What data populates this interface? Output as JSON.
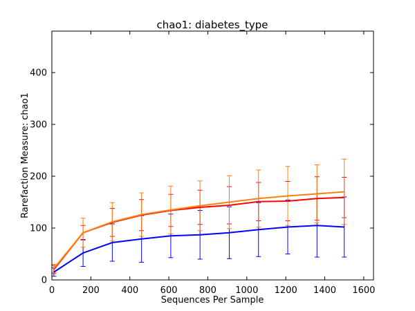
{
  "chart_data": {
    "type": "line",
    "title": "chao1: diabetes_type",
    "xlabel": "Sequences Per Sample",
    "ylabel": "Rarefaction Measure: chao1",
    "xlim": [
      0,
      1650
    ],
    "ylim": [
      0,
      480
    ],
    "xticks": [
      0,
      200,
      400,
      600,
      800,
      1000,
      1200,
      1400,
      1600
    ],
    "yticks": [
      0,
      100,
      200,
      300,
      400
    ],
    "x": [
      10,
      160,
      310,
      460,
      610,
      760,
      910,
      1060,
      1210,
      1360,
      1500
    ],
    "grid": false,
    "legend": "none",
    "series": [
      {
        "color": "#0000ff",
        "values": [
          15,
          52,
          72,
          79,
          85,
          87,
          91,
          97,
          102,
          105,
          102
        ],
        "err": [
          8,
          26,
          36,
          45,
          42,
          47,
          50,
          52,
          52,
          61,
          58
        ]
      },
      {
        "color": "#ff0000",
        "values": [
          20,
          91,
          111,
          125,
          134,
          140,
          144,
          151,
          152,
          157,
          159
        ],
        "err": [
          8,
          14,
          27,
          30,
          31,
          33,
          36,
          37,
          38,
          42,
          39
        ]
      },
      {
        "color": "#ff7f0e",
        "values": [
          22,
          91,
          112,
          126,
          135,
          143,
          150,
          157,
          162,
          166,
          170
        ],
        "err": [
          8,
          28,
          37,
          42,
          46,
          48,
          51,
          55,
          57,
          56,
          63
        ]
      }
    ]
  }
}
